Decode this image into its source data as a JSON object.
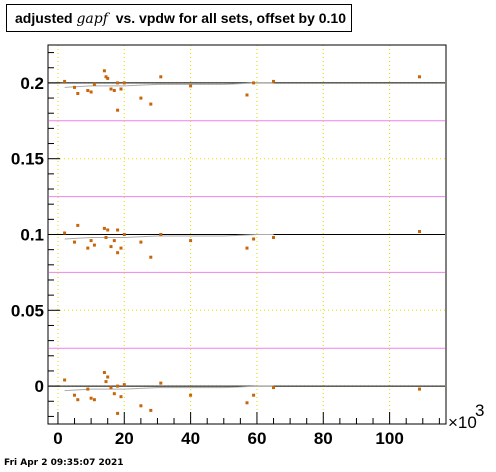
{
  "title": {
    "prefix": "adjusted",
    "variable": "gapf",
    "suffix": "vs. vpdw for all sets, offset by 0.10"
  },
  "footer": "Fri Apr  2 09:35:07 2021",
  "colors": {
    "points": "#c8640a",
    "reference_lines": "#000000",
    "band_lines": "#ee82ee",
    "trend": "#aaaaaa",
    "grid": "#e0e000"
  },
  "chart_data": {
    "type": "scatter",
    "title": "adjusted gapf vs. vpdw for all sets, offset by 0.10",
    "xlabel": "",
    "ylabel": "",
    "x_multiplier_label": "×10",
    "x_multiplier_exponent": "3",
    "xlim": [
      -3,
      117
    ],
    "ylim": [
      -0.025,
      0.225
    ],
    "x_ticks": [
      0,
      20,
      40,
      60,
      80,
      100
    ],
    "x_tick_labels": [
      "0",
      "20",
      "40",
      "60",
      "80",
      "100"
    ],
    "y_ticks": [
      0,
      0.05,
      0.1,
      0.15,
      0.2
    ],
    "y_tick_labels": [
      "0",
      "0.05",
      "0.1",
      "0.15",
      "0.2"
    ],
    "grid": true,
    "reference_lines": [
      0,
      0.1,
      0.2
    ],
    "band_lines": [
      -0.025,
      0.025,
      0.075,
      0.125,
      0.175
    ],
    "trend_lines": [
      {
        "x": [
          2,
          10,
          20,
          30,
          40,
          50,
          60,
          65
        ],
        "y": [
          -0.003,
          -0.002,
          -0.002,
          -0.001,
          -0.001,
          -0.001,
          0.0,
          0.0
        ]
      },
      {
        "x": [
          2,
          10,
          20,
          30,
          40,
          50,
          60,
          65
        ],
        "y": [
          0.097,
          0.098,
          0.098,
          0.099,
          0.099,
          0.099,
          0.1,
          0.1
        ]
      },
      {
        "x": [
          2,
          10,
          20,
          30,
          40,
          50,
          60,
          65
        ],
        "y": [
          0.197,
          0.198,
          0.198,
          0.199,
          0.199,
          0.199,
          0.2,
          0.2
        ]
      }
    ],
    "series": [
      {
        "x": [
          2,
          5,
          6,
          9,
          10,
          11,
          14,
          14.5,
          15,
          16,
          17,
          18,
          18,
          19,
          20,
          25,
          28,
          31,
          40,
          57,
          59,
          65,
          109
        ],
        "y": [
          0.004,
          -0.006,
          -0.009,
          -0.002,
          -0.008,
          -0.009,
          0.009,
          0.003,
          0.006,
          -0.001,
          -0.005,
          0.0,
          -0.018,
          -0.007,
          0.001,
          -0.013,
          -0.016,
          0.002,
          -0.006,
          -0.011,
          -0.006,
          -0.001,
          -0.002
        ]
      },
      {
        "x": [
          2,
          5,
          6,
          9,
          10,
          11,
          14,
          14.5,
          15,
          16,
          17,
          18,
          18,
          19,
          20,
          25,
          28,
          31,
          40,
          57,
          59,
          65,
          109
        ],
        "y": [
          0.101,
          0.095,
          0.106,
          0.091,
          0.096,
          0.093,
          0.104,
          0.098,
          0.103,
          0.092,
          0.096,
          0.103,
          0.088,
          0.091,
          0.1,
          0.095,
          0.085,
          0.1,
          0.096,
          0.091,
          0.097,
          0.098,
          0.102
        ]
      },
      {
        "x": [
          2,
          5,
          6,
          9,
          10,
          11,
          14,
          14.5,
          15,
          16,
          17,
          18,
          18,
          19,
          20,
          25,
          28,
          31,
          40,
          57,
          59,
          65,
          109
        ],
        "y": [
          0.201,
          0.197,
          0.193,
          0.195,
          0.194,
          0.199,
          0.208,
          0.204,
          0.203,
          0.196,
          0.195,
          0.2,
          0.182,
          0.196,
          0.2,
          0.19,
          0.186,
          0.204,
          0.198,
          0.192,
          0.2,
          0.201,
          0.204
        ]
      }
    ]
  }
}
